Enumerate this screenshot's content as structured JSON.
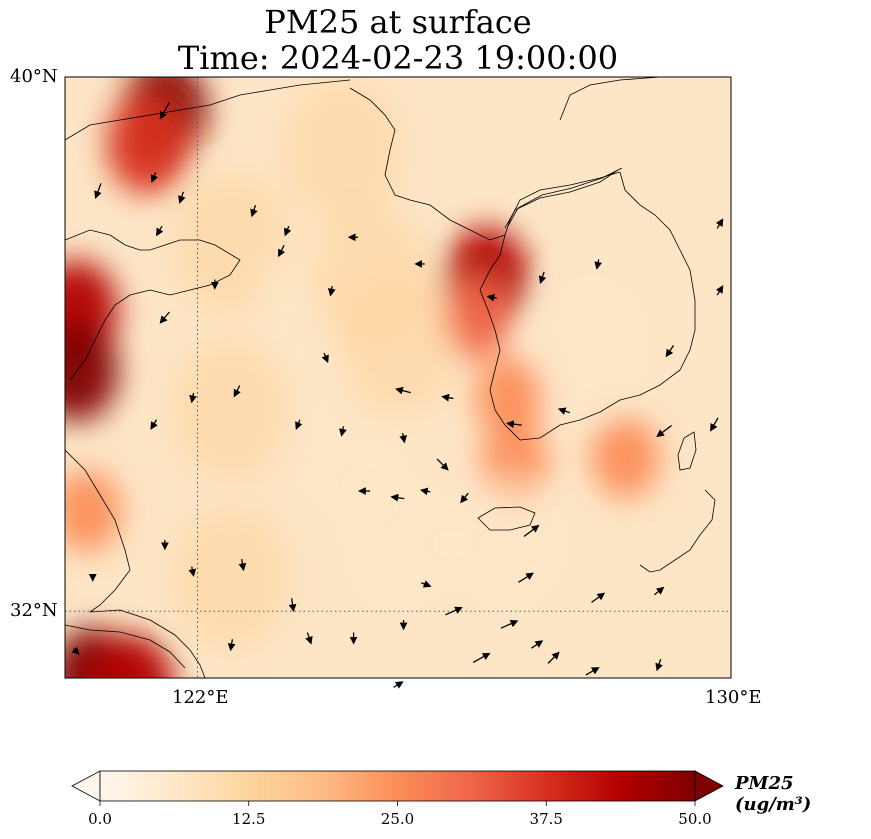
{
  "title": {
    "line1": "PM25 at surface",
    "line2": "Time: 2024-02-23 19:00:00"
  },
  "map": {
    "extent": {
      "lon_min": 118.0,
      "lon_max": 130.0,
      "lat_min": 31.0,
      "lat_max": 40.0
    },
    "lat_ticks": [
      {
        "value": 40,
        "label": "40°N"
      },
      {
        "value": 32,
        "label": "32°N"
      }
    ],
    "lon_ticks": [
      {
        "value": 122,
        "label": "122°E"
      },
      {
        "value": 130,
        "label": "130°E"
      }
    ],
    "gridlines": {
      "lon": 122,
      "lat": 32,
      "style": "dotted"
    },
    "field": "PM25",
    "hotspots": [
      {
        "lon": 119.8,
        "lat": 39.5,
        "value": 48
      },
      {
        "lon": 119.5,
        "lat": 39.0,
        "value": 40
      },
      {
        "lon": 118.2,
        "lat": 36.5,
        "value": 45
      },
      {
        "lon": 118.2,
        "lat": 35.6,
        "value": 48
      },
      {
        "lon": 118.5,
        "lat": 31.0,
        "value": 50
      },
      {
        "lon": 119.2,
        "lat": 30.9,
        "value": 42
      },
      {
        "lon": 118.4,
        "lat": 33.5,
        "value": 24
      },
      {
        "lon": 125.6,
        "lat": 37.0,
        "value": 44
      },
      {
        "lon": 125.4,
        "lat": 36.4,
        "value": 30
      },
      {
        "lon": 126.0,
        "lat": 35.2,
        "value": 28
      },
      {
        "lon": 126.1,
        "lat": 34.2,
        "value": 26
      },
      {
        "lon": 128.1,
        "lat": 34.3,
        "value": 24
      },
      {
        "lon": 123.0,
        "lat": 38.9,
        "value": 14
      },
      {
        "lon": 121.0,
        "lat": 37.5,
        "value": 10
      },
      {
        "lon": 121.0,
        "lat": 35.0,
        "value": 10
      },
      {
        "lon": 123.0,
        "lat": 34.5,
        "value": 9
      },
      {
        "lon": 124.0,
        "lat": 33.0,
        "value": 9
      },
      {
        "lon": 122.5,
        "lat": 36.5,
        "value": 9
      },
      {
        "lon": 126.0,
        "lat": 33.0,
        "value": 8
      },
      {
        "lon": 127.5,
        "lat": 36.0,
        "value": 8
      },
      {
        "lon": 124.0,
        "lat": 36.0,
        "value": 12
      },
      {
        "lon": 123.5,
        "lat": 37.0,
        "value": 11
      },
      {
        "lon": 121.0,
        "lat": 32.5,
        "value": 10
      }
    ],
    "wind_vectors": [
      [
        119.8,
        39.5,
        -0.5,
        -0.9
      ],
      [
        118.6,
        38.3,
        -0.3,
        -0.8
      ],
      [
        119.6,
        38.5,
        -0.2,
        -0.5
      ],
      [
        120.1,
        38.2,
        -0.2,
        -0.6
      ],
      [
        119.7,
        37.7,
        -0.3,
        -0.5
      ],
      [
        121.4,
        38.0,
        -0.2,
        -0.6
      ],
      [
        122.0,
        37.7,
        -0.2,
        -0.5
      ],
      [
        122.8,
        36.8,
        -0.1,
        -0.5
      ],
      [
        120.7,
        36.9,
        0.0,
        -0.5
      ],
      [
        121.9,
        37.4,
        -0.3,
        -0.6
      ],
      [
        119.8,
        36.4,
        -0.5,
        -0.6
      ],
      [
        121.1,
        35.3,
        -0.3,
        -0.6
      ],
      [
        122.7,
        35.8,
        0.2,
        -0.5
      ],
      [
        123.2,
        37.6,
        -0.5,
        0.0
      ],
      [
        124.4,
        37.2,
        -0.5,
        0.0
      ],
      [
        125.7,
        36.7,
        -0.5,
        0.1
      ],
      [
        126.6,
        37.0,
        -0.2,
        -0.6
      ],
      [
        127.6,
        37.2,
        -0.1,
        -0.5
      ],
      [
        128.9,
        35.9,
        -0.4,
        -0.6
      ],
      [
        124.1,
        35.3,
        -0.8,
        0.2
      ],
      [
        124.9,
        35.2,
        -0.6,
        0.1
      ],
      [
        126.1,
        34.8,
        -0.8,
        0.1
      ],
      [
        127.0,
        35.0,
        -0.6,
        0.2
      ],
      [
        128.8,
        34.7,
        -0.8,
        -0.6
      ],
      [
        119.6,
        34.8,
        -0.3,
        -0.5
      ],
      [
        120.3,
        35.2,
        -0.1,
        -0.5
      ],
      [
        122.2,
        34.8,
        -0.2,
        -0.5
      ],
      [
        123.0,
        34.7,
        -0.1,
        -0.5
      ],
      [
        124.1,
        34.6,
        0.1,
        -0.5
      ],
      [
        124.8,
        34.2,
        0.6,
        -0.6
      ],
      [
        123.4,
        33.8,
        -0.6,
        0.0
      ],
      [
        124.0,
        33.7,
        -0.7,
        0.1
      ],
      [
        124.5,
        33.8,
        -0.5,
        0.1
      ],
      [
        125.2,
        33.7,
        -0.4,
        -0.5
      ],
      [
        126.4,
        33.2,
        0.8,
        0.6
      ],
      [
        126.3,
        32.5,
        0.8,
        0.5
      ],
      [
        127.6,
        32.2,
        0.7,
        0.5
      ],
      [
        128.7,
        32.3,
        0.5,
        0.4
      ],
      [
        119.8,
        33.0,
        0.0,
        -0.5
      ],
      [
        120.3,
        32.6,
        0.1,
        -0.5
      ],
      [
        121.2,
        32.7,
        0.1,
        -0.6
      ],
      [
        122.1,
        32.1,
        0.1,
        -0.7
      ],
      [
        122.4,
        31.6,
        0.2,
        -0.6
      ],
      [
        123.2,
        31.6,
        0.0,
        -0.6
      ],
      [
        124.1,
        31.8,
        0.0,
        -0.5
      ],
      [
        124.5,
        32.4,
        0.5,
        -0.2
      ],
      [
        125.0,
        32.0,
        0.9,
        0.4
      ],
      [
        126.0,
        31.8,
        0.9,
        0.4
      ],
      [
        126.5,
        31.5,
        0.6,
        0.4
      ],
      [
        126.8,
        31.3,
        0.6,
        0.6
      ],
      [
        127.5,
        31.1,
        0.7,
        0.4
      ],
      [
        128.7,
        31.2,
        -0.2,
        -0.6
      ],
      [
        125.5,
        31.3,
        0.9,
        0.5
      ],
      [
        124.0,
        30.9,
        0.5,
        0.3
      ],
      [
        118.5,
        32.5,
        0.0,
        -0.3
      ],
      [
        118.2,
        31.4,
        0.3,
        -0.3
      ],
      [
        121.0,
        31.5,
        -0.1,
        -0.6
      ],
      [
        129.7,
        34.8,
        -0.4,
        -0.7
      ],
      [
        129.8,
        36.8,
        0.3,
        0.5
      ],
      [
        129.8,
        37.8,
        0.3,
        0.5
      ]
    ]
  },
  "colorbar": {
    "label": "PM25 (ug/m³)",
    "vmin": 0.0,
    "vmax": 50.0,
    "extend": "both",
    "colormap": "OrRd",
    "colors": [
      "#fff7ec",
      "#fee8c8",
      "#fdd49e",
      "#fdbb84",
      "#fc8d59",
      "#ef6548",
      "#d7301f",
      "#b30000",
      "#7f0000"
    ],
    "ticks": [
      {
        "value": 0.0,
        "label": "0.0"
      },
      {
        "value": 12.5,
        "label": "12.5"
      },
      {
        "value": 25.0,
        "label": "25.0"
      },
      {
        "value": 37.5,
        "label": "37.5"
      },
      {
        "value": 50.0,
        "label": "50.0"
      }
    ]
  }
}
